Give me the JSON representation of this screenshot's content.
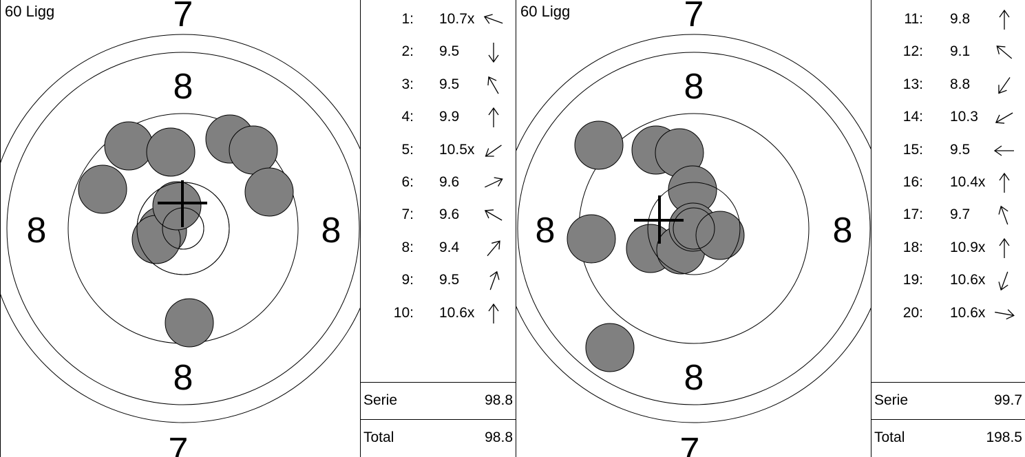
{
  "targets": [
    {
      "title": "60 Ligg",
      "ring_labels": {
        "top": "7",
        "upper": "8",
        "left": "8",
        "right": "8",
        "lower": "8",
        "bottom": "7"
      },
      "shot_color": "#808080",
      "shots": [
        {
          "n": 1,
          "value": "10.7x",
          "arrow_deg": 290
        },
        {
          "n": 2,
          "value": "9.5",
          "arrow_deg": 180
        },
        {
          "n": 3,
          "value": "9.5",
          "arrow_deg": 330
        },
        {
          "n": 4,
          "value": "9.9",
          "arrow_deg": 0
        },
        {
          "n": 5,
          "value": "10.5x",
          "arrow_deg": 235
        },
        {
          "n": 6,
          "value": "9.6",
          "arrow_deg": 65
        },
        {
          "n": 7,
          "value": "9.6",
          "arrow_deg": 300
        },
        {
          "n": 8,
          "value": "9.4",
          "arrow_deg": 40
        },
        {
          "n": 9,
          "value": "9.5",
          "arrow_deg": 20
        },
        {
          "n": 10,
          "value": "10.6x",
          "arrow_deg": 0
        }
      ],
      "serie_label": "Serie",
      "serie_value": "98.8",
      "total_label": "Total",
      "total_value": "98.8"
    },
    {
      "title": "60 Ligg",
      "ring_labels": {
        "top": "7",
        "upper": "8",
        "left": "8",
        "right": "8",
        "lower": "8",
        "bottom": "7"
      },
      "shot_color": "#808080",
      "shots": [
        {
          "n": 11,
          "value": "9.8",
          "arrow_deg": 0
        },
        {
          "n": 12,
          "value": "9.1",
          "arrow_deg": 310
        },
        {
          "n": 13,
          "value": "8.8",
          "arrow_deg": 215
        },
        {
          "n": 14,
          "value": "10.3",
          "arrow_deg": 240
        },
        {
          "n": 15,
          "value": "9.5",
          "arrow_deg": 270
        },
        {
          "n": 16,
          "value": "10.4x",
          "arrow_deg": 0
        },
        {
          "n": 17,
          "value": "9.7",
          "arrow_deg": 340
        },
        {
          "n": 18,
          "value": "10.9x",
          "arrow_deg": 0
        },
        {
          "n": 19,
          "value": "10.6x",
          "arrow_deg": 200
        },
        {
          "n": 20,
          "value": "10.6x",
          "arrow_deg": 100
        }
      ],
      "serie_label": "Serie",
      "serie_value": "99.7",
      "total_label": "Total",
      "total_value": "198.5"
    }
  ]
}
